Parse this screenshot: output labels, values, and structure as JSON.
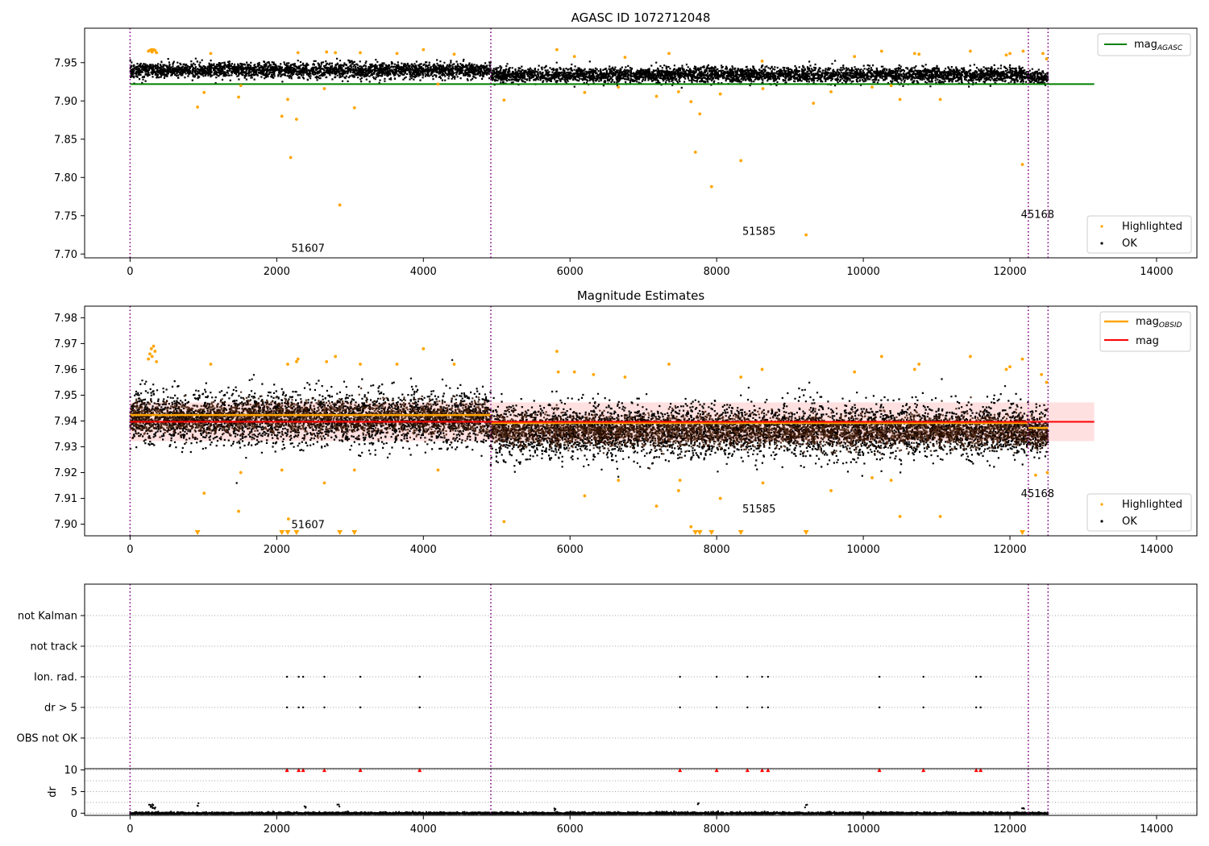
{
  "chart_data": [
    {
      "type": "scatter",
      "title": "AGASC ID 1072712048",
      "xlim": [
        -620,
        14550
      ],
      "ylim": [
        7.695,
        7.995
      ],
      "x_ticks": [
        "0",
        "2000",
        "4000",
        "6000",
        "8000",
        "10000",
        "12000",
        "14000"
      ],
      "x_tick_values": [
        0,
        2000,
        4000,
        6000,
        8000,
        10000,
        12000,
        14000
      ],
      "y_ticks": [
        "7.70",
        "7.75",
        "7.80",
        "7.85",
        "7.90",
        "7.95"
      ],
      "y_tick_values": [
        7.7,
        7.75,
        7.8,
        7.85,
        7.9,
        7.95
      ],
      "legend_upper": {
        "placement": "top-right",
        "entries": [
          {
            "label_main": "mag",
            "label_sub": "AGASC",
            "color": "#008000",
            "kind": "line"
          }
        ]
      },
      "legend_lower": {
        "placement": "bottom-right",
        "entries": [
          {
            "label": "Highlighted",
            "color": "#ffa500"
          },
          {
            "label": "OK",
            "color": "#000000"
          }
        ]
      },
      "reference_lines": [
        {
          "name": "mag_AGASC",
          "y": 7.922,
          "x_range": [
            0,
            13150
          ],
          "color": "#008000"
        }
      ],
      "obsid_boundaries": [
        0,
        4920,
        12250,
        12520
      ],
      "obsid_labels": [
        {
          "text": "51607",
          "x": 2200,
          "y": 7.703
        },
        {
          "text": "51585",
          "x": 8350,
          "y": 7.725
        },
        {
          "text": "45168",
          "x": 12150,
          "y": 7.747
        }
      ],
      "ok_band_segments": [
        {
          "x_range": [
            0,
            4920
          ],
          "center": 7.941,
          "spread": 0.007
        },
        {
          "x_range": [
            4920,
            12250
          ],
          "center": 7.935,
          "spread": 0.007
        },
        {
          "x_range": [
            12250,
            12520
          ],
          "center": 7.932,
          "spread": 0.006
        }
      ],
      "highlighted": [
        [
          250,
          7.965
        ],
        [
          270,
          7.966
        ],
        [
          290,
          7.967
        ],
        [
          300,
          7.964
        ],
        [
          320,
          7.967
        ],
        [
          340,
          7.966
        ],
        [
          360,
          7.963
        ],
        [
          920,
          7.892
        ],
        [
          1010,
          7.911
        ],
        [
          1100,
          7.962
        ],
        [
          1480,
          7.905
        ],
        [
          1510,
          7.92
        ],
        [
          2070,
          7.88
        ],
        [
          2150,
          7.902
        ],
        [
          2190,
          7.826
        ],
        [
          2270,
          7.876
        ],
        [
          2290,
          7.963
        ],
        [
          2650,
          7.916
        ],
        [
          2680,
          7.964
        ],
        [
          2800,
          7.963
        ],
        [
          2860,
          7.764
        ],
        [
          3060,
          7.891
        ],
        [
          3140,
          7.963
        ],
        [
          3640,
          7.962
        ],
        [
          4000,
          7.967
        ],
        [
          4200,
          7.922
        ],
        [
          4420,
          7.961
        ],
        [
          5100,
          7.901
        ],
        [
          5820,
          7.967
        ],
        [
          6060,
          7.958
        ],
        [
          6200,
          7.911
        ],
        [
          6660,
          7.918
        ],
        [
          6750,
          7.957
        ],
        [
          7180,
          7.906
        ],
        [
          7350,
          7.962
        ],
        [
          7480,
          7.912
        ],
        [
          7650,
          7.899
        ],
        [
          7710,
          7.833
        ],
        [
          7770,
          7.883
        ],
        [
          7930,
          7.788
        ],
        [
          8050,
          7.909
        ],
        [
          8330,
          7.822
        ],
        [
          8620,
          7.952
        ],
        [
          8630,
          7.916
        ],
        [
          9220,
          7.725
        ],
        [
          9320,
          7.897
        ],
        [
          9560,
          7.912
        ],
        [
          9880,
          7.958
        ],
        [
          10120,
          7.918
        ],
        [
          10250,
          7.965
        ],
        [
          10380,
          7.92
        ],
        [
          10500,
          7.902
        ],
        [
          10700,
          7.962
        ],
        [
          10760,
          7.961
        ],
        [
          11050,
          7.902
        ],
        [
          11460,
          7.965
        ],
        [
          11950,
          7.96
        ],
        [
          12000,
          7.962
        ],
        [
          12170,
          7.817
        ],
        [
          12180,
          7.965
        ],
        [
          12450,
          7.962
        ],
        [
          12500,
          7.955
        ]
      ]
    },
    {
      "type": "scatter",
      "title": "Magnitude Estimates",
      "xlim": [
        -620,
        14550
      ],
      "ylim": [
        7.8955,
        7.9845
      ],
      "x_ticks": [
        "0",
        "2000",
        "4000",
        "6000",
        "8000",
        "10000",
        "12000",
        "14000"
      ],
      "x_tick_values": [
        0,
        2000,
        4000,
        6000,
        8000,
        10000,
        12000,
        14000
      ],
      "y_ticks": [
        "7.90",
        "7.91",
        "7.92",
        "7.93",
        "7.94",
        "7.95",
        "7.96",
        "7.97",
        "7.98"
      ],
      "y_tick_values": [
        7.9,
        7.91,
        7.92,
        7.93,
        7.94,
        7.95,
        7.96,
        7.97,
        7.98
      ],
      "legend_upper": {
        "placement": "top-right",
        "entries": [
          {
            "label_main": "mag",
            "label_sub": "OBSID",
            "color": "#ffa500",
            "kind": "line"
          },
          {
            "label_main": "mag",
            "label_sub": "",
            "color": "#ff0000",
            "kind": "line"
          }
        ]
      },
      "legend_lower": {
        "placement": "bottom-right",
        "entries": [
          {
            "label": "Highlighted",
            "color": "#ffa500"
          },
          {
            "label": "OK",
            "color": "#000000"
          }
        ]
      },
      "mean_mag": {
        "y": 7.9397,
        "x_range": [
          0,
          13150
        ],
        "band": [
          7.9322,
          7.9472
        ],
        "color": "#ff0000"
      },
      "mag_obsid": [
        {
          "x_range": [
            0,
            4920
          ],
          "y": 7.9423
        },
        {
          "x_range": [
            4920,
            12250
          ],
          "y": 7.9392
        },
        {
          "x_range": [
            12250,
            12520
          ],
          "y": 7.9373
        }
      ],
      "obsid_boundaries": [
        0,
        4920,
        12250,
        12520
      ],
      "obsid_labels": [
        {
          "text": "51607",
          "x": 2200,
          "y": 7.8985
        },
        {
          "text": "51585",
          "x": 8350,
          "y": 7.9045
        },
        {
          "text": "45168",
          "x": 12150,
          "y": 7.9105
        }
      ],
      "ok_band_segments": [
        {
          "x_range": [
            0,
            4920
          ],
          "center": 7.9415,
          "spread": 0.0075
        },
        {
          "x_range": [
            4920,
            12250
          ],
          "center": 7.9365,
          "spread": 0.0075
        },
        {
          "x_range": [
            12250,
            12520
          ],
          "center": 7.9355,
          "spread": 0.007
        }
      ],
      "highlighted": [
        [
          250,
          7.964
        ],
        [
          270,
          7.966
        ],
        [
          290,
          7.968
        ],
        [
          300,
          7.965
        ],
        [
          320,
          7.969
        ],
        [
          340,
          7.967
        ],
        [
          360,
          7.963
        ],
        [
          1010,
          7.912
        ],
        [
          1100,
          7.962
        ],
        [
          1480,
          7.905
        ],
        [
          1510,
          7.92
        ],
        [
          2070,
          7.921
        ],
        [
          2150,
          7.962
        ],
        [
          2160,
          7.902
        ],
        [
          2270,
          7.963
        ],
        [
          2290,
          7.964
        ],
        [
          2650,
          7.916
        ],
        [
          2680,
          7.963
        ],
        [
          2800,
          7.965
        ],
        [
          3060,
          7.921
        ],
        [
          3140,
          7.962
        ],
        [
          3640,
          7.962
        ],
        [
          4000,
          7.968
        ],
        [
          4200,
          7.921
        ],
        [
          4420,
          7.962
        ],
        [
          5100,
          7.901
        ],
        [
          5820,
          7.967
        ],
        [
          5840,
          7.959
        ],
        [
          6060,
          7.959
        ],
        [
          6200,
          7.911
        ],
        [
          6320,
          7.958
        ],
        [
          6660,
          7.917
        ],
        [
          6750,
          7.957
        ],
        [
          7180,
          7.907
        ],
        [
          7350,
          7.962
        ],
        [
          7480,
          7.913
        ],
        [
          7500,
          7.917
        ],
        [
          7650,
          7.899
        ],
        [
          8050,
          7.91
        ],
        [
          8330,
          7.957
        ],
        [
          8620,
          7.96
        ],
        [
          8630,
          7.916
        ],
        [
          9560,
          7.913
        ],
        [
          9880,
          7.959
        ],
        [
          10120,
          7.918
        ],
        [
          10250,
          7.965
        ],
        [
          10380,
          7.917
        ],
        [
          10500,
          7.903
        ],
        [
          10700,
          7.96
        ],
        [
          10760,
          7.962
        ],
        [
          11050,
          7.903
        ],
        [
          11460,
          7.965
        ],
        [
          11950,
          7.96
        ],
        [
          12000,
          7.961
        ],
        [
          12170,
          7.964
        ],
        [
          12350,
          7.919
        ],
        [
          12430,
          7.958
        ],
        [
          12500,
          7.955
        ],
        [
          12510,
          7.92
        ]
      ],
      "offscale_low_markers_x": [
        920,
        2070,
        2150,
        2270,
        2860,
        3060,
        7710,
        7770,
        7930,
        8330,
        9220,
        12170
      ]
    },
    {
      "type": "scatter",
      "title": "",
      "xlim": [
        -620,
        14550
      ],
      "categories": [
        "not Kalman",
        "not track",
        "Ion. rad.",
        "dr > 5",
        "OBS not OK"
      ],
      "flag_points": {
        "Ion. rad.": [
          2140,
          2300,
          2360,
          2650,
          3140,
          3950,
          7500,
          8000,
          8420,
          8620,
          8700,
          10220,
          10820,
          11540,
          11600
        ],
        "dr > 5": [
          2140,
          2300,
          2360,
          2650,
          3140,
          3950,
          7500,
          8000,
          8420,
          8620,
          8700,
          10220,
          10820,
          11540,
          11600
        ]
      },
      "obsid_boundaries": [
        0,
        4920,
        12250,
        12520
      ]
    },
    {
      "type": "scatter",
      "title": "",
      "ylabel": "dr",
      "xlim": [
        -620,
        14550
      ],
      "ylim": [
        -0.5,
        10.3
      ],
      "x_ticks": [
        "0",
        "2000",
        "4000",
        "6000",
        "8000",
        "10000",
        "12000",
        "14000"
      ],
      "x_tick_values": [
        0,
        2000,
        4000,
        6000,
        8000,
        10000,
        12000,
        14000
      ],
      "y_ticks": [
        "0",
        "5",
        "10"
      ],
      "y_tick_values": [
        0,
        5,
        10
      ],
      "clipped_markers_x": [
        2140,
        2300,
        2360,
        2650,
        3140,
        3950,
        7500,
        8000,
        8420,
        8620,
        8700,
        10220,
        10820,
        11540,
        11600
      ],
      "spikes": [
        [
          270,
          2.6
        ],
        [
          290,
          2.4
        ],
        [
          310,
          2.1
        ],
        [
          330,
          1.8
        ],
        [
          920,
          2.5
        ],
        [
          2390,
          2.4
        ],
        [
          2840,
          2.2
        ],
        [
          7750,
          2.6
        ],
        [
          9220,
          2.3
        ],
        [
          5800,
          1.3
        ],
        [
          12180,
          1.6
        ]
      ],
      "obsid_boundaries": [
        0,
        4920,
        12250,
        12520
      ]
    }
  ]
}
